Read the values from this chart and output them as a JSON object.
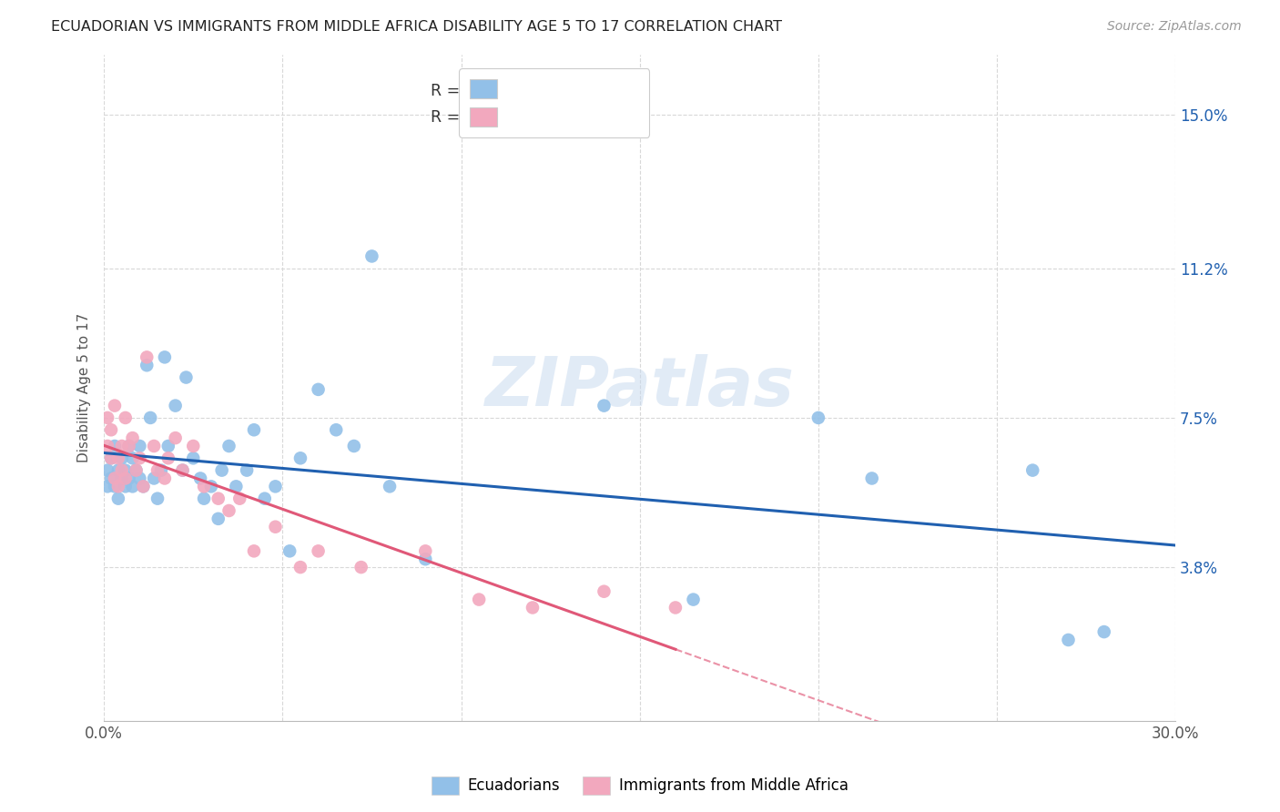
{
  "title": "ECUADORIAN VS IMMIGRANTS FROM MIDDLE AFRICA DISABILITY AGE 5 TO 17 CORRELATION CHART",
  "source": "Source: ZipAtlas.com",
  "ylabel": "Disability Age 5 to 17",
  "xlim": [
    0.0,
    0.3
  ],
  "ylim": [
    0.0,
    0.165
  ],
  "yticks": [
    0.038,
    0.075,
    0.112,
    0.15
  ],
  "ytick_labels": [
    "3.8%",
    "7.5%",
    "11.2%",
    "15.0%"
  ],
  "xticks": [
    0.0,
    0.05,
    0.1,
    0.15,
    0.2,
    0.25,
    0.3
  ],
  "xtick_labels": [
    "0.0%",
    "",
    "",
    "",
    "",
    "",
    "30.0%"
  ],
  "background_color": "#ffffff",
  "grid_color": "#d8d8d8",
  "blue_color": "#92c0e8",
  "pink_color": "#f2a8be",
  "blue_line_color": "#2060b0",
  "pink_line_color": "#e05878",
  "label1": "Ecuadorians",
  "label2": "Immigrants from Middle Africa",
  "watermark": "ZIPatlas",
  "blue_scatter_x": [
    0.001,
    0.001,
    0.002,
    0.002,
    0.003,
    0.003,
    0.004,
    0.004,
    0.005,
    0.005,
    0.006,
    0.006,
    0.007,
    0.007,
    0.008,
    0.008,
    0.009,
    0.01,
    0.01,
    0.011,
    0.012,
    0.013,
    0.014,
    0.015,
    0.016,
    0.017,
    0.018,
    0.02,
    0.022,
    0.023,
    0.025,
    0.027,
    0.028,
    0.03,
    0.032,
    0.033,
    0.035,
    0.037,
    0.04,
    0.042,
    0.045,
    0.048,
    0.052,
    0.055,
    0.06,
    0.065,
    0.07,
    0.075,
    0.08,
    0.09,
    0.14,
    0.165,
    0.2,
    0.215,
    0.26,
    0.27,
    0.28
  ],
  "blue_scatter_y": [
    0.062,
    0.058,
    0.06,
    0.065,
    0.058,
    0.068,
    0.062,
    0.055,
    0.06,
    0.065,
    0.058,
    0.062,
    0.06,
    0.068,
    0.065,
    0.058,
    0.062,
    0.06,
    0.068,
    0.058,
    0.088,
    0.075,
    0.06,
    0.055,
    0.062,
    0.09,
    0.068,
    0.078,
    0.062,
    0.085,
    0.065,
    0.06,
    0.055,
    0.058,
    0.05,
    0.062,
    0.068,
    0.058,
    0.062,
    0.072,
    0.055,
    0.058,
    0.042,
    0.065,
    0.082,
    0.072,
    0.068,
    0.115,
    0.058,
    0.04,
    0.078,
    0.03,
    0.075,
    0.06,
    0.062,
    0.02,
    0.022
  ],
  "pink_scatter_x": [
    0.001,
    0.001,
    0.002,
    0.002,
    0.003,
    0.003,
    0.004,
    0.004,
    0.005,
    0.005,
    0.006,
    0.006,
    0.007,
    0.008,
    0.009,
    0.01,
    0.011,
    0.012,
    0.014,
    0.015,
    0.017,
    0.018,
    0.02,
    0.022,
    0.025,
    0.028,
    0.032,
    0.035,
    0.038,
    0.042,
    0.048,
    0.055,
    0.06,
    0.072,
    0.09,
    0.105,
    0.12,
    0.14,
    0.16
  ],
  "pink_scatter_y": [
    0.075,
    0.068,
    0.072,
    0.065,
    0.06,
    0.078,
    0.065,
    0.058,
    0.068,
    0.062,
    0.075,
    0.06,
    0.068,
    0.07,
    0.062,
    0.065,
    0.058,
    0.09,
    0.068,
    0.062,
    0.06,
    0.065,
    0.07,
    0.062,
    0.068,
    0.058,
    0.055,
    0.052,
    0.055,
    0.042,
    0.048,
    0.038,
    0.042,
    0.038,
    0.042,
    0.03,
    0.028,
    0.032,
    0.028
  ]
}
